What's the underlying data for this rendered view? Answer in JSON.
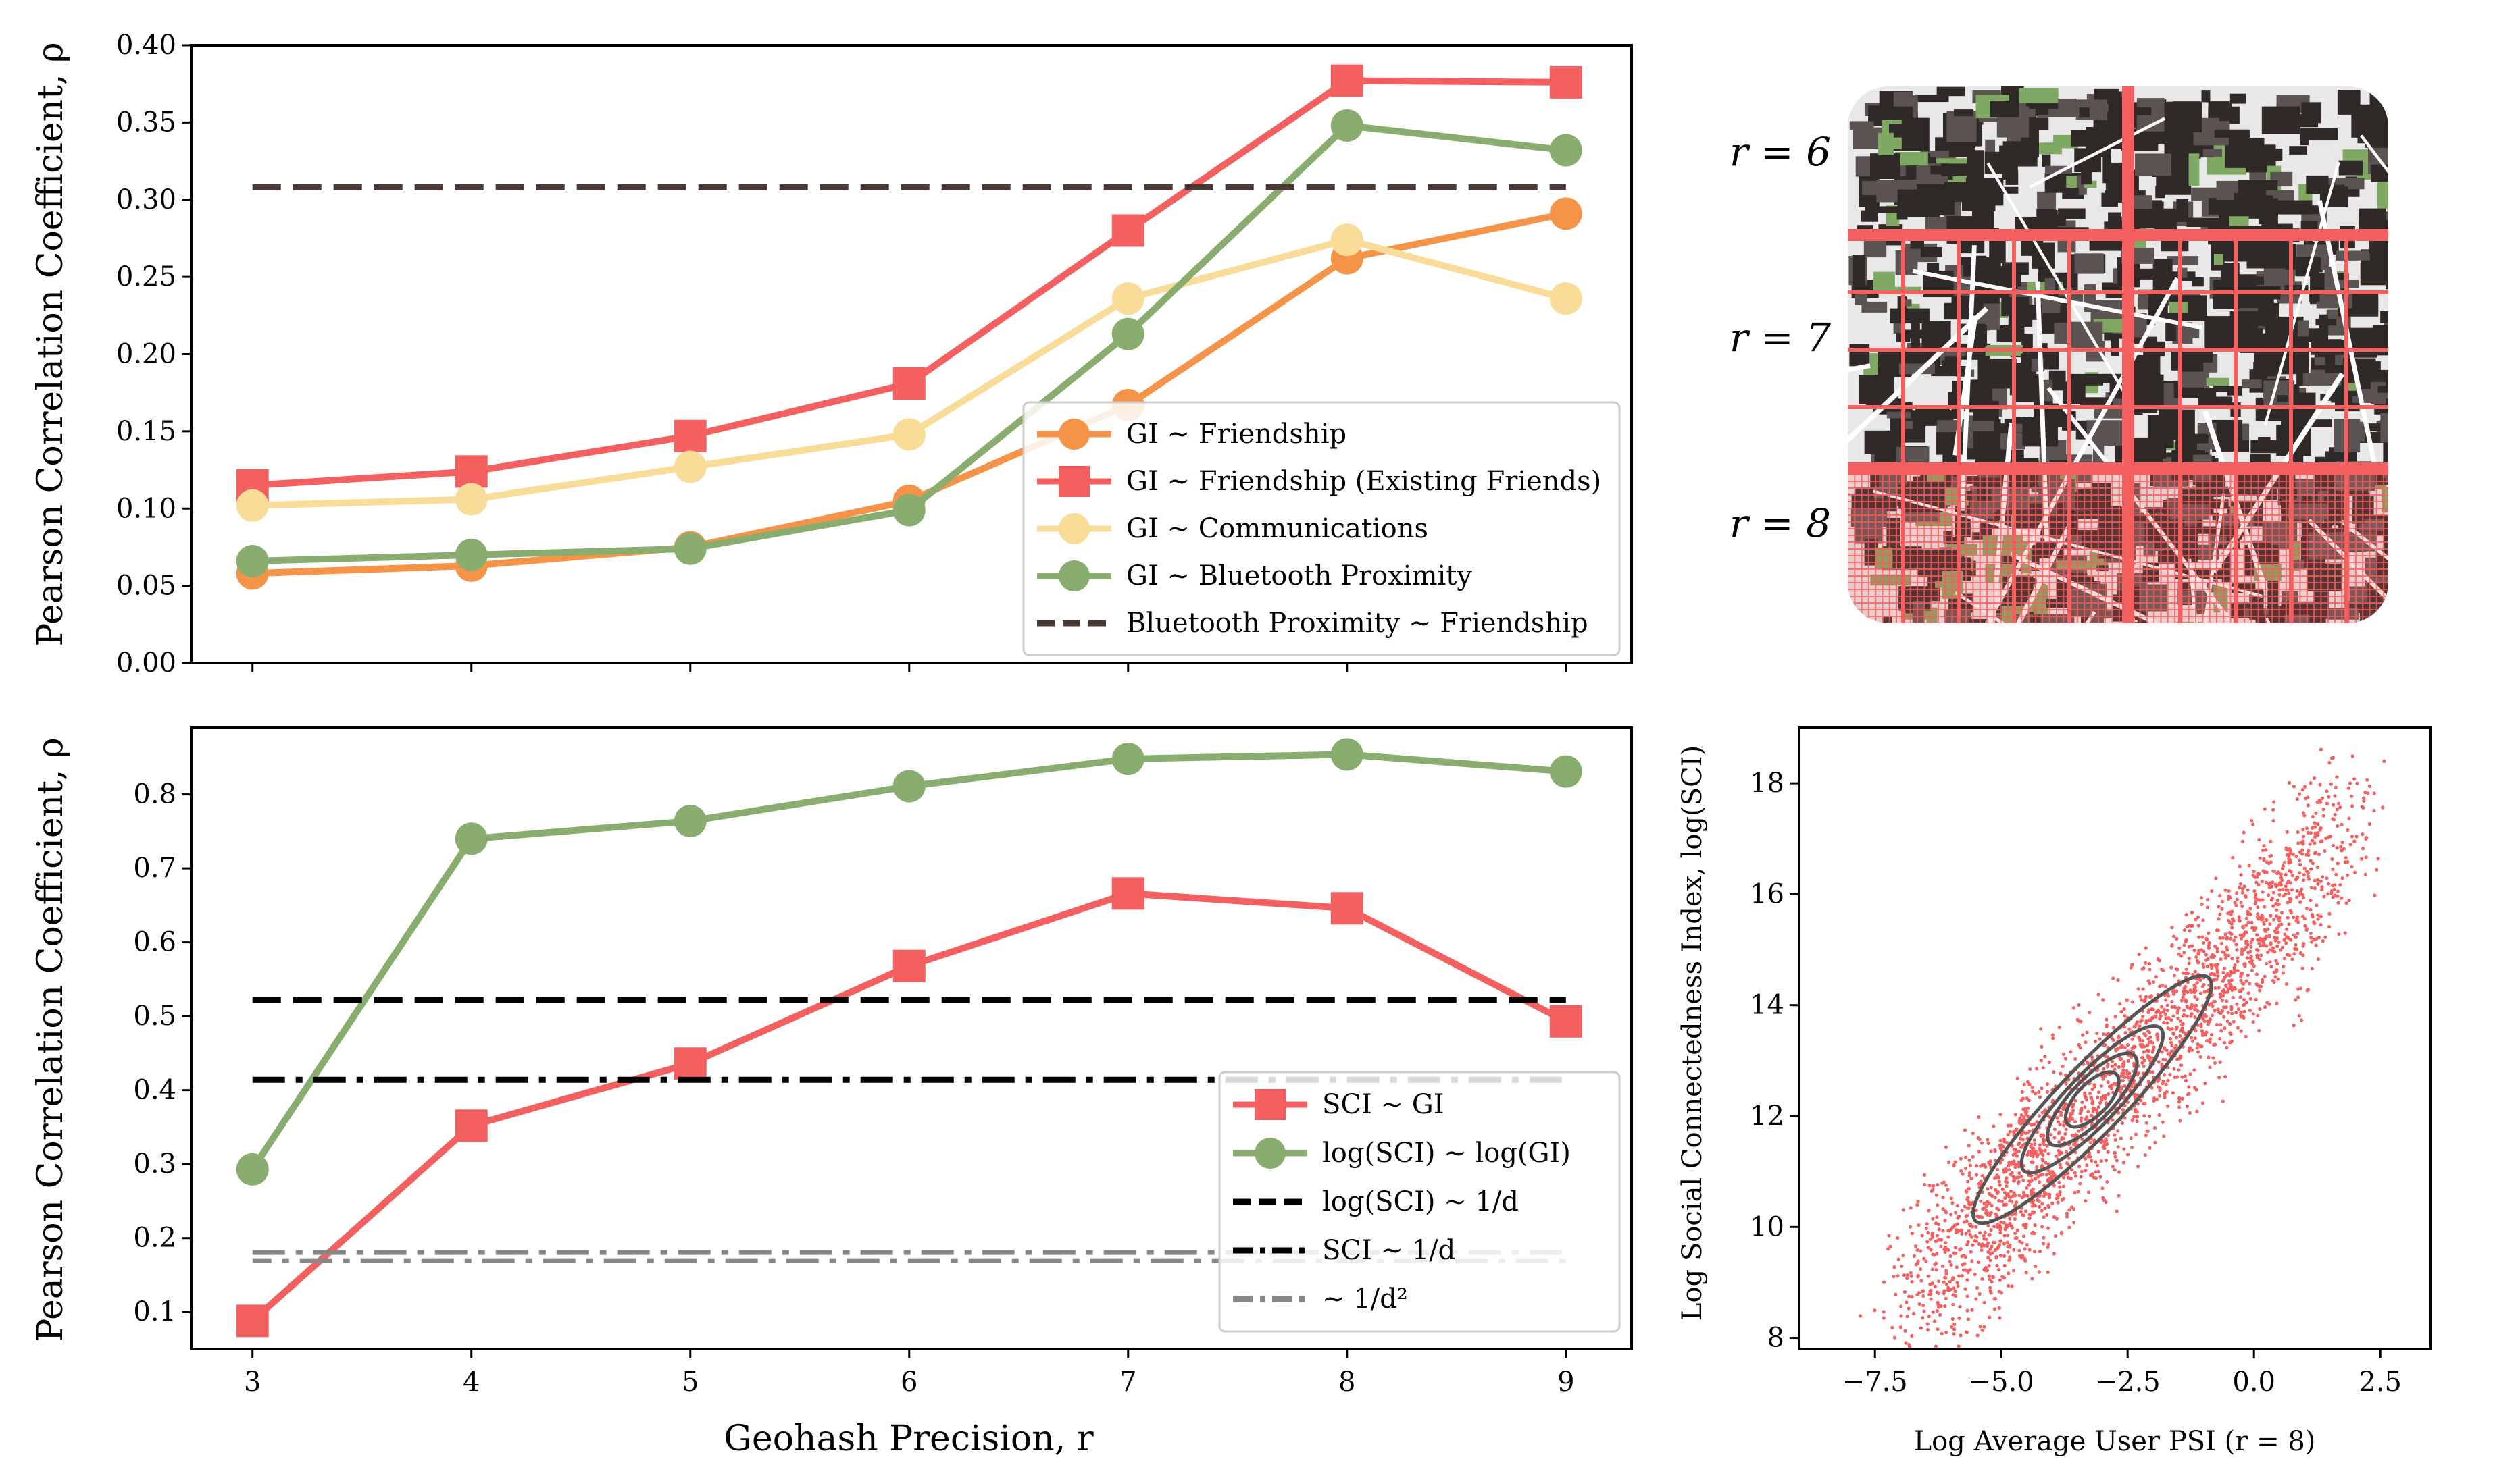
{
  "colors": {
    "orange": "#f59448",
    "red": "#f45f5f",
    "yellow": "#f8dc98",
    "green": "#88ad6f",
    "darkbrown": "#4a3836",
    "black": "#000000",
    "gray": "#888888",
    "contour": "#555555"
  },
  "chart_data": [
    {
      "type": "line",
      "panel": "top-left",
      "xlabel": "",
      "ylabel": "Pearson Correlation Coefficient, ρ",
      "x": [
        3,
        4,
        5,
        6,
        7,
        8,
        9
      ],
      "xlim": [
        2.72,
        9.3
      ],
      "ylim": [
        0.0,
        0.4
      ],
      "yticks": [
        "0.00",
        "0.05",
        "0.10",
        "0.15",
        "0.20",
        "0.25",
        "0.30",
        "0.35",
        "0.40"
      ],
      "ytick_values": [
        0.0,
        0.05,
        0.1,
        0.15,
        0.2,
        0.25,
        0.3,
        0.35,
        0.4
      ],
      "grid": false,
      "legend": "lower-right",
      "series": [
        {
          "name": "GI ∼ Friendship",
          "color": "orange",
          "marker": "circle",
          "values": [
            0.058,
            0.063,
            0.075,
            0.105,
            0.167,
            0.262,
            0.291
          ]
        },
        {
          "name": "GI ∼ Friendship (Existing Friends)",
          "color": "red",
          "marker": "square",
          "values": [
            0.115,
            0.124,
            0.147,
            0.181,
            0.28,
            0.377,
            0.376
          ]
        },
        {
          "name": "GI ∼ Communications",
          "color": "yellow",
          "marker": "circle",
          "values": [
            0.102,
            0.106,
            0.127,
            0.148,
            0.236,
            0.274,
            0.236
          ]
        },
        {
          "name": "GI ∼ Bluetooth Proximity",
          "color": "green",
          "marker": "circle",
          "values": [
            0.066,
            0.07,
            0.074,
            0.099,
            0.213,
            0.348,
            0.332
          ]
        },
        {
          "name": "Bluetooth Proximity ∼ Friendship",
          "color": "darkbrown",
          "marker": "none",
          "style": "dashed",
          "values": [
            0.308,
            0.308,
            0.308,
            0.308,
            0.308,
            0.308,
            0.308
          ]
        }
      ]
    },
    {
      "type": "line",
      "panel": "bottom-left",
      "xlabel": "Geohash Precision, r",
      "ylabel": "Pearson Correlation Coefficient, ρ",
      "x": [
        3,
        4,
        5,
        6,
        7,
        8,
        9
      ],
      "xticks": [
        "3",
        "4",
        "5",
        "6",
        "7",
        "8",
        "9"
      ],
      "xlim": [
        2.72,
        9.3
      ],
      "ylim": [
        0.05,
        0.89
      ],
      "yticks": [
        "0.1",
        "0.2",
        "0.3",
        "0.4",
        "0.5",
        "0.6",
        "0.7",
        "0.8"
      ],
      "ytick_values": [
        0.1,
        0.2,
        0.3,
        0.4,
        0.5,
        0.6,
        0.7,
        0.8
      ],
      "grid": false,
      "legend": "lower-right",
      "series": [
        {
          "name": "SCI ∼ GI",
          "color": "red",
          "marker": "square",
          "values": [
            0.088,
            0.352,
            0.436,
            0.568,
            0.666,
            0.646,
            0.493
          ]
        },
        {
          "name": "log(SCI) ∼ log(GI)",
          "color": "green",
          "marker": "circle",
          "values": [
            0.293,
            0.74,
            0.764,
            0.811,
            0.848,
            0.854,
            0.831
          ]
        },
        {
          "name": "log(SCI) ∼ 1/d",
          "color": "black",
          "marker": "none",
          "style": "dashed",
          "values": [
            0.522,
            0.522,
            0.522,
            0.522,
            0.522,
            0.522,
            0.522
          ]
        },
        {
          "name": "SCI ∼ 1/d",
          "color": "black",
          "marker": "none",
          "style": "dashdot",
          "values": [
            0.414,
            0.414,
            0.414,
            0.414,
            0.414,
            0.414,
            0.414
          ]
        },
        {
          "name": "∼ 1/d²",
          "color": "gray",
          "marker": "none",
          "style": "dashdot-multi",
          "values": [
            0.175,
            0.175,
            0.175,
            0.175,
            0.175,
            0.175,
            0.175
          ]
        }
      ]
    },
    {
      "type": "scatter",
      "panel": "bottom-right",
      "xlabel": "Log Average User PSI (r = 8)",
      "ylabel": "Log Social Connectedness Index, log(SCI)",
      "xlim": [
        -9.0,
        3.5
      ],
      "ylim": [
        7.8,
        19.0
      ],
      "xticks": [
        "−7.5",
        "−5.0",
        "−2.5",
        "0.0",
        "2.5"
      ],
      "xtick_values": [
        -7.5,
        -5.0,
        -2.5,
        0.0,
        2.5
      ],
      "yticks": [
        "8",
        "10",
        "12",
        "14",
        "16",
        "18"
      ],
      "ytick_values": [
        8,
        10,
        12,
        14,
        16,
        18
      ],
      "point_color": "red",
      "trend": {
        "x_start": -6.5,
        "x_end": 1.5,
        "slope": 0.95,
        "intercept": 15.2,
        "spread": 0.85
      },
      "center": [
        -3.2,
        12.3
      ],
      "contour_color": "contour",
      "contours": "density levels around center"
    }
  ],
  "map_panel": {
    "labels": [
      "r = 6",
      "r = 7",
      "r = 8"
    ],
    "grid_color": "red"
  },
  "texts": {
    "top_ylabel": "Pearson Correlation Coefficient, ρ",
    "bottom_ylabel": "Pearson Correlation Coefficient, ρ",
    "bottom_xlabel": "Geohash Precision, r",
    "scatter_xlabel": "Log Average User PSI (r = 8)",
    "scatter_ylabel": "Log Social Connectedness Index, log(SCI)"
  }
}
